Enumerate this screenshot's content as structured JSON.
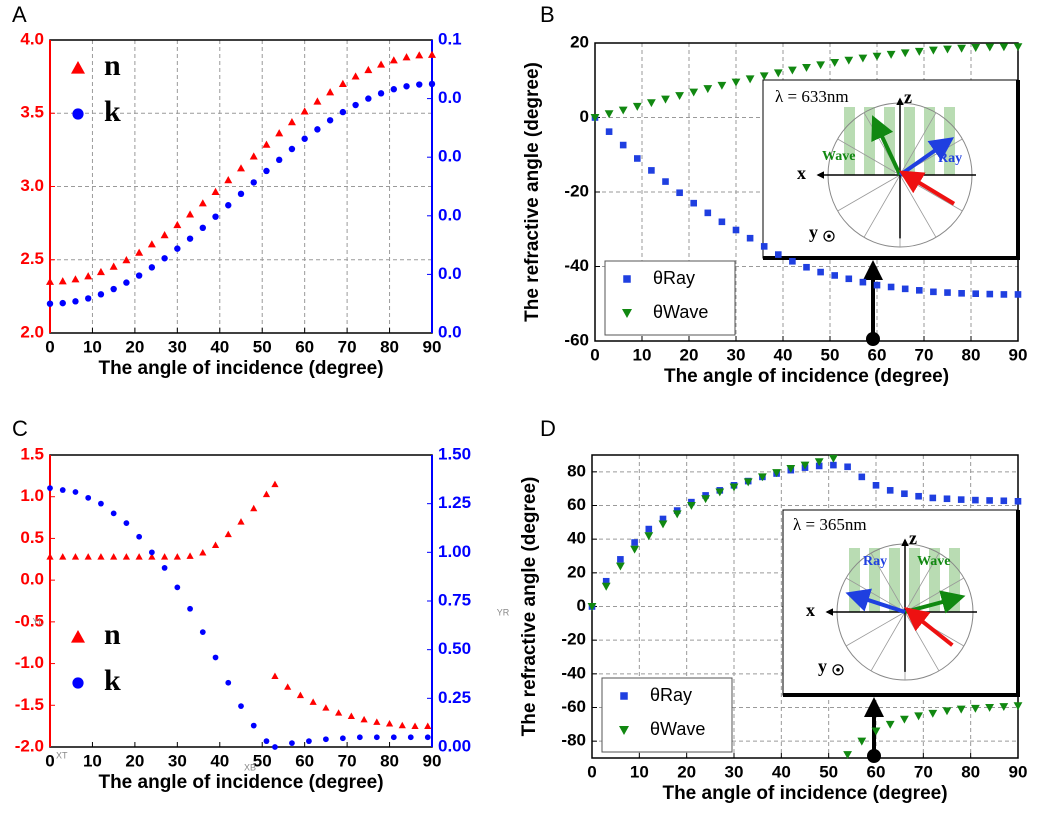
{
  "chart_data": [
    {
      "type": "scatter",
      "panel": "A",
      "xlabel": "The angle of incidence (degree)",
      "xlim": [
        0,
        90
      ],
      "xticks": [
        0,
        10,
        20,
        30,
        40,
        50,
        60,
        70,
        80,
        90
      ],
      "ylim": [
        2,
        4
      ],
      "yticks": [
        {
          "value": 2,
          "label": "2.0"
        },
        2.5,
        {
          "value": 3,
          "label": "3.0"
        },
        3.5,
        {
          "value": 4,
          "label": "4.0"
        }
      ],
      "ycolor": "#ff0000",
      "y2lim": [
        0,
        0.1
      ],
      "y2ticks": [
        {
          "value": 0,
          "label": "0.0"
        },
        {
          "value": 0.02,
          "label": "0.0"
        },
        {
          "value": 0.04,
          "label": "0.0"
        },
        {
          "value": 0.06,
          "label": "0.0"
        },
        {
          "value": 0.08,
          "label": "0.0"
        },
        {
          "value": 0.1,
          "label": "0.1"
        }
      ],
      "y2color": "#0000ff",
      "grid": true,
      "legend": "upper left",
      "legend_frame": false,
      "x": [
        0,
        3,
        6,
        9,
        12,
        15,
        18,
        21,
        24,
        27,
        30,
        33,
        36,
        39,
        42,
        45,
        48,
        51,
        54,
        57,
        60,
        63,
        66,
        69,
        72,
        75,
        78,
        81,
        84,
        87,
        90
      ],
      "series": [
        {
          "name": "n",
          "color": "#ff0000",
          "marker": "triangle",
          "values": [
            2.35,
            2.354,
            2.367,
            2.388,
            2.417,
            2.454,
            2.498,
            2.549,
            2.606,
            2.669,
            2.738,
            2.81,
            2.886,
            2.964,
            3.044,
            3.125,
            3.206,
            3.286,
            3.364,
            3.44,
            3.513,
            3.581,
            3.644,
            3.701,
            3.752,
            3.796,
            3.833,
            3.862,
            3.883,
            3.896,
            3.9
          ]
        },
        {
          "name": "k",
          "color": "#0000ff",
          "marker": "circle",
          "axis": "y2",
          "values": [
            0.01,
            0.0102,
            0.0108,
            0.0118,
            0.0132,
            0.015,
            0.0172,
            0.0196,
            0.0224,
            0.0255,
            0.0288,
            0.0322,
            0.0359,
            0.0397,
            0.0436,
            0.0475,
            0.0514,
            0.0553,
            0.0591,
            0.0628,
            0.0663,
            0.0695,
            0.0726,
            0.0754,
            0.0778,
            0.08,
            0.0818,
            0.0832,
            0.0842,
            0.0848,
            0.085
          ]
        }
      ]
    },
    {
      "type": "scatter",
      "panel": "B",
      "xlabel": "The angle of incidence (degree)",
      "ylabel": "The refractive angle (degree)",
      "xlim": [
        0,
        90
      ],
      "xticks": [
        0,
        10,
        20,
        30,
        40,
        50,
        60,
        70,
        80,
        90
      ],
      "ylim": [
        -60,
        20
      ],
      "yticks": [
        -60,
        -40,
        -20,
        0,
        20
      ],
      "grid": true,
      "legend": "lower left",
      "legend_frame": true,
      "x": [
        0,
        3,
        6,
        9,
        12,
        15,
        18,
        21,
        24,
        27,
        30,
        33,
        36,
        39,
        42,
        45,
        48,
        51,
        54,
        57,
        60,
        63,
        66,
        69,
        72,
        75,
        78,
        81,
        84,
        87,
        90
      ],
      "series": [
        {
          "name": "θRay",
          "color": "#1f3fe0",
          "marker": "square",
          "values": [
            0,
            -3.8,
            -7.4,
            -11,
            -14.2,
            -17.2,
            -20.2,
            -23,
            -25.6,
            -28,
            -30.2,
            -32.4,
            -34.6,
            -36.8,
            -38.6,
            -40.2,
            -41.5,
            -42.4,
            -43.3,
            -44.2,
            -45,
            -45.5,
            -46,
            -46.4,
            -46.8,
            -47,
            -47.2,
            -47.3,
            -47.4,
            -47.5,
            -47.5
          ]
        },
        {
          "name": "θWave",
          "color": "#118811",
          "marker": "triangle-down",
          "values": [
            0,
            0.99,
            1.99,
            2.97,
            3.95,
            4.92,
            5.87,
            6.81,
            7.73,
            8.63,
            9.5,
            10.35,
            11.17,
            11.96,
            12.71,
            13.43,
            14.12,
            14.76,
            15.37,
            15.94,
            16.45,
            16.93,
            17.36,
            17.74,
            18.07,
            18.35,
            18.58,
            18.77,
            18.9,
            18.97,
            19
          ]
        }
      ],
      "inset": {
        "lambda": "λ = 633nm",
        "z": "z",
        "x": "x",
        "y": "y",
        "wave": "Wave",
        "ray": "Ray"
      }
    },
    {
      "type": "scatter",
      "panel": "C",
      "xlabel": "The angle of incidence (degree)",
      "xlim": [
        0,
        90
      ],
      "xticks": [
        0,
        10,
        20,
        30,
        40,
        50,
        60,
        70,
        80,
        90
      ],
      "ylim": [
        -2,
        1.5
      ],
      "yticks": [
        {
          "value": -2,
          "label": "-2.0"
        },
        -1.5,
        {
          "value": -1,
          "label": "-1.0"
        },
        -0.5,
        {
          "value": 0,
          "label": "0.0"
        },
        0.5,
        {
          "value": 1,
          "label": "1.0"
        },
        1.5
      ],
      "ycolor": "#ff0000",
      "y2lim": [
        0,
        1.5
      ],
      "y2ticks": [
        {
          "value": 0,
          "label": "0.00"
        },
        0.25,
        {
          "value": 0.5,
          "label": "0.50"
        },
        0.75,
        {
          "value": 1,
          "label": "1.00"
        },
        1.25,
        {
          "value": 1.5,
          "label": "1.50"
        }
      ],
      "y2color": "#0000ff",
      "grid": false,
      "legend": "lower left",
      "legend_frame": false,
      "axis_marks": [
        "YL",
        "YR",
        "XT",
        "XB"
      ],
      "series": [
        {
          "name": "n",
          "color": "#ff0000",
          "marker": "triangle",
          "x": [
            0,
            3,
            6,
            9,
            12,
            15,
            18,
            21,
            24,
            27,
            30,
            33,
            36,
            39,
            42,
            45,
            48,
            51,
            53,
            53,
            56,
            59,
            62,
            65,
            68,
            71,
            74,
            77,
            80,
            83,
            86,
            89
          ],
          "values": [
            0.28,
            0.28,
            0.28,
            0.28,
            0.28,
            0.28,
            0.28,
            0.28,
            0.28,
            0.28,
            0.28,
            0.29,
            0.33,
            0.42,
            0.55,
            0.7,
            0.86,
            1.03,
            1.15,
            -1.15,
            -1.28,
            -1.38,
            -1.46,
            -1.53,
            -1.59,
            -1.63,
            -1.67,
            -1.7,
            -1.72,
            -1.74,
            -1.75,
            -1.75
          ]
        },
        {
          "name": "k",
          "color": "#0000ff",
          "marker": "circle",
          "axis": "y2",
          "x": [
            0,
            3,
            6,
            9,
            12,
            15,
            18,
            21,
            24,
            27,
            30,
            33,
            36,
            39,
            42,
            45,
            48,
            51,
            53,
            57,
            61,
            65,
            69,
            73,
            77,
            81,
            85,
            89
          ],
          "values": [
            1.33,
            1.32,
            1.31,
            1.28,
            1.25,
            1.2,
            1.15,
            1.08,
            1.0,
            0.92,
            0.82,
            0.71,
            0.59,
            0.46,
            0.33,
            0.21,
            0.11,
            0.03,
            0.0,
            0.02,
            0.03,
            0.04,
            0.045,
            0.05,
            0.05,
            0.05,
            0.05,
            0.05
          ]
        }
      ]
    },
    {
      "type": "scatter",
      "panel": "D",
      "xlabel": "The angle of incidence (degree)",
      "ylabel": "The refractive angle (degree)",
      "xlim": [
        0,
        90
      ],
      "xticks": [
        0,
        10,
        20,
        30,
        40,
        50,
        60,
        70,
        80,
        90
      ],
      "ylim": [
        -90,
        90
      ],
      "yticks": [
        -80,
        -60,
        -40,
        -20,
        0,
        20,
        40,
        60,
        80
      ],
      "grid": true,
      "legend": "lower left",
      "legend_frame": true,
      "x": [
        0,
        3,
        6,
        9,
        12,
        15,
        18,
        21,
        24,
        27,
        30,
        33,
        36,
        39,
        42,
        45,
        48,
        51,
        54,
        57,
        60,
        63,
        66,
        69,
        72,
        75,
        78,
        81,
        84,
        87,
        90
      ],
      "series": [
        {
          "name": "θRay",
          "color": "#1f3fe0",
          "marker": "square",
          "values": [
            0,
            15,
            28,
            38,
            46,
            52,
            57,
            62,
            66,
            69,
            72,
            74.5,
            77,
            79,
            81,
            82.5,
            83.5,
            84,
            83,
            77,
            72,
            69,
            67,
            65.5,
            64.5,
            64,
            63.5,
            63.2,
            63,
            62.8,
            62.5
          ]
        },
        {
          "name": "θWave",
          "color": "#118811",
          "marker": "triangle-down",
          "values": [
            0,
            12,
            24,
            34,
            42,
            49,
            55,
            60,
            64,
            68,
            71,
            74,
            77,
            79.5,
            82,
            84,
            86,
            88,
            -88,
            -80,
            -74,
            -70,
            -67,
            -65,
            -63.5,
            -62,
            -61,
            -60.5,
            -60,
            -59.5,
            -59
          ]
        }
      ],
      "inset": {
        "lambda": "λ = 365nm",
        "z": "z",
        "x": "x",
        "y": "y",
        "wave": "Wave",
        "ray": "Ray"
      }
    }
  ]
}
